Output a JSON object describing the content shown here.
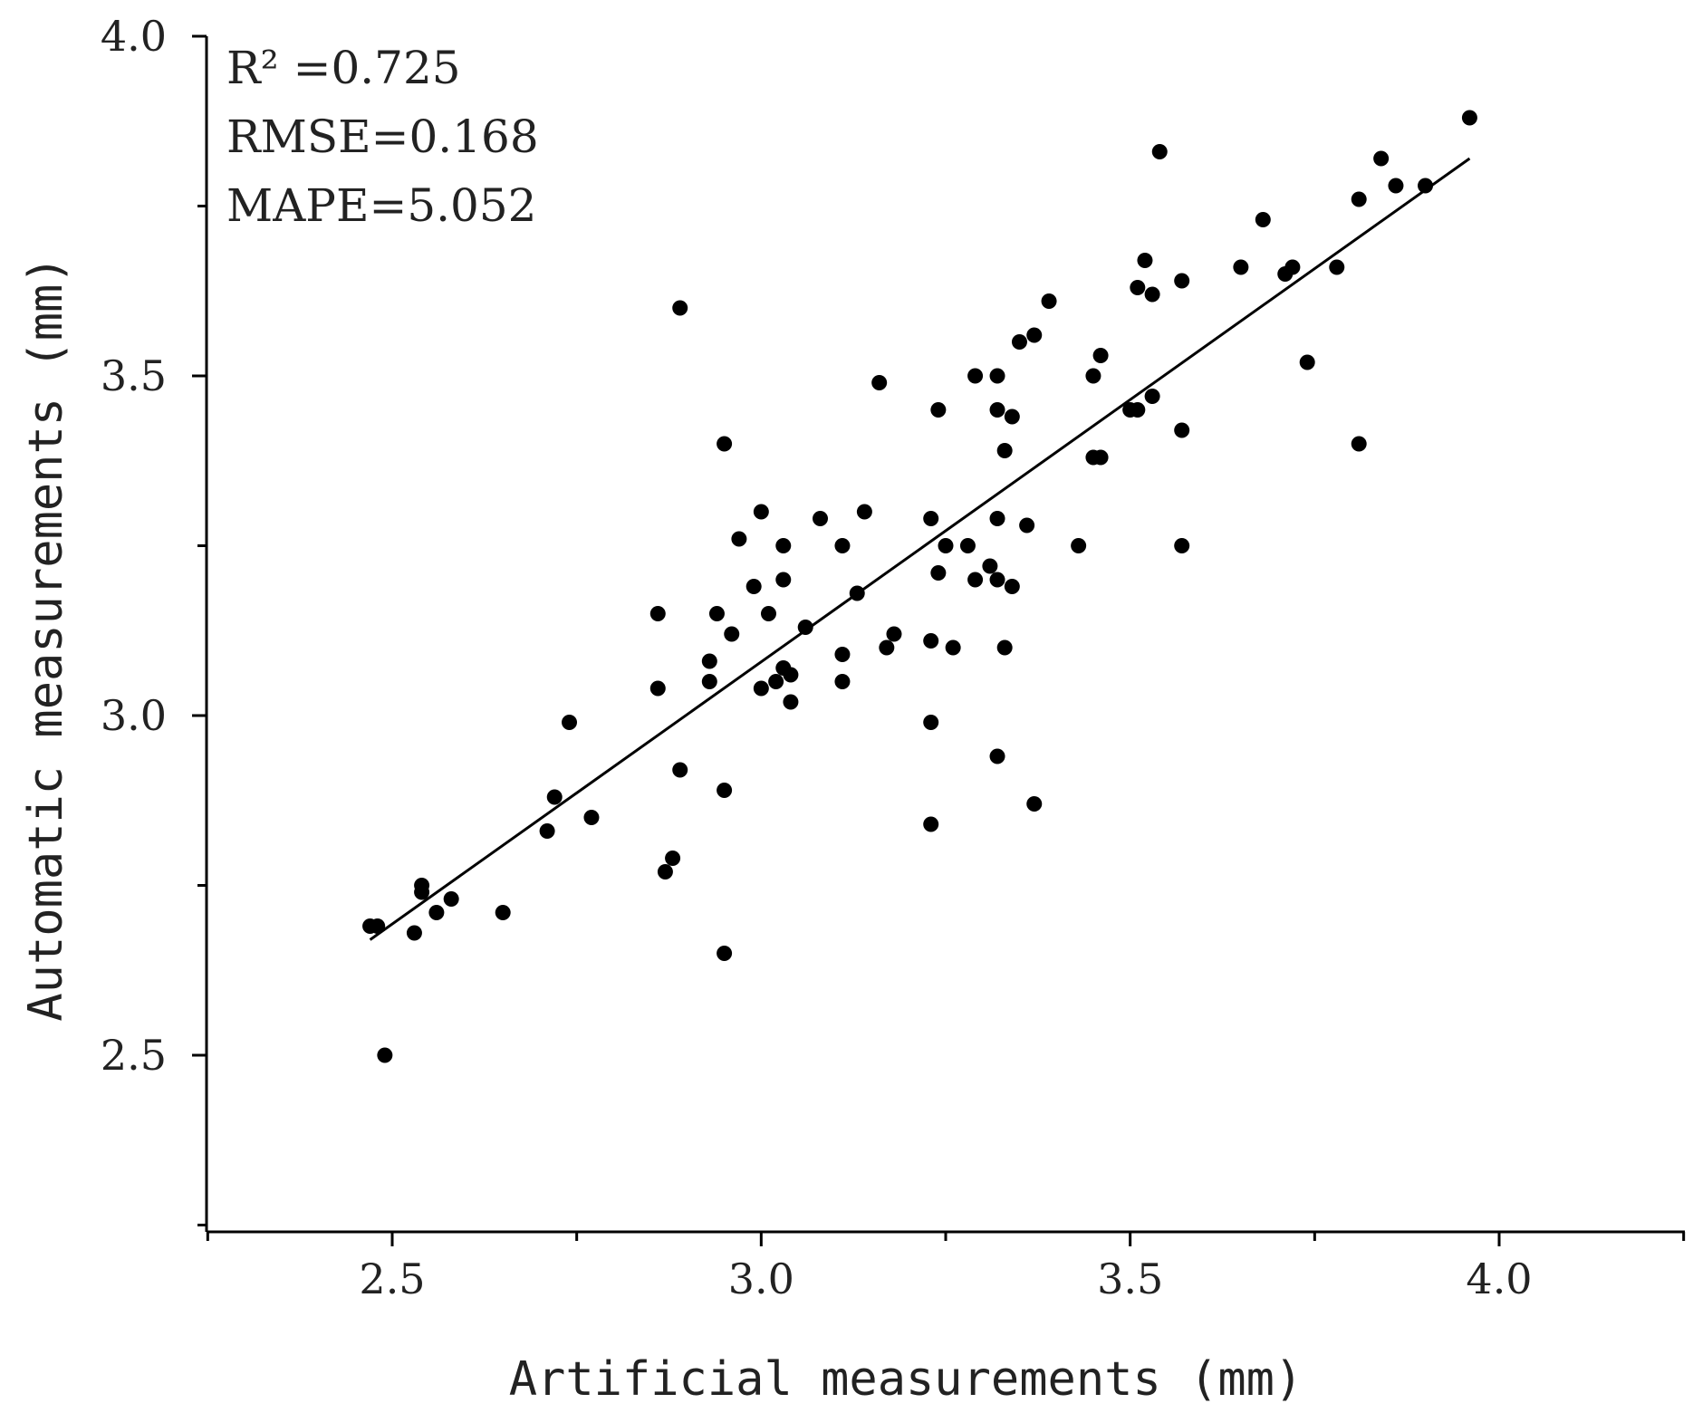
{
  "chart_data": {
    "type": "scatter",
    "xlabel": "Artificial measurements (mm)",
    "ylabel": "Automatic measurements (mm)",
    "xlim": [
      2.25,
      4.25
    ],
    "ylim": [
      2.25,
      4.0
    ],
    "x_ticks": [
      "2.5",
      "3.0",
      "3.5",
      "4.0"
    ],
    "y_ticks": [
      "2.5",
      "3.0",
      "3.5",
      "4.0"
    ],
    "annotations": [
      "R² =0.725",
      "RMSE=0.168",
      "MAPE=5.052"
    ],
    "grid": false,
    "marker_color": "#000000",
    "fit_line": {
      "x": [
        2.47,
        3.96
      ],
      "y": [
        2.67,
        3.82
      ]
    },
    "points": [
      [
        2.47,
        2.69
      ],
      [
        2.48,
        2.69
      ],
      [
        2.49,
        2.5
      ],
      [
        2.53,
        2.68
      ],
      [
        2.54,
        2.74
      ],
      [
        2.54,
        2.75
      ],
      [
        2.56,
        2.71
      ],
      [
        2.58,
        2.73
      ],
      [
        2.65,
        2.71
      ],
      [
        2.71,
        2.83
      ],
      [
        2.72,
        2.88
      ],
      [
        2.74,
        2.99
      ],
      [
        2.77,
        2.85
      ],
      [
        2.86,
        3.15
      ],
      [
        2.86,
        3.04
      ],
      [
        2.87,
        2.77
      ],
      [
        2.88,
        2.79
      ],
      [
        2.89,
        3.6
      ],
      [
        2.89,
        2.92
      ],
      [
        2.93,
        3.08
      ],
      [
        2.93,
        3.05
      ],
      [
        2.94,
        3.15
      ],
      [
        2.95,
        3.4
      ],
      [
        2.95,
        2.89
      ],
      [
        2.95,
        2.65
      ],
      [
        2.96,
        3.12
      ],
      [
        2.97,
        3.26
      ],
      [
        2.99,
        3.19
      ],
      [
        3.0,
        3.3
      ],
      [
        3.0,
        3.04
      ],
      [
        3.01,
        3.15
      ],
      [
        3.02,
        3.05
      ],
      [
        3.03,
        3.25
      ],
      [
        3.03,
        3.2
      ],
      [
        3.03,
        3.07
      ],
      [
        3.04,
        3.06
      ],
      [
        3.04,
        3.02
      ],
      [
        3.06,
        3.13
      ],
      [
        3.08,
        3.29
      ],
      [
        3.11,
        3.25
      ],
      [
        3.11,
        3.09
      ],
      [
        3.11,
        3.05
      ],
      [
        3.13,
        3.18
      ],
      [
        3.14,
        3.3
      ],
      [
        3.16,
        3.49
      ],
      [
        3.17,
        3.1
      ],
      [
        3.18,
        3.12
      ],
      [
        3.23,
        3.29
      ],
      [
        3.23,
        3.11
      ],
      [
        3.23,
        2.99
      ],
      [
        3.23,
        2.84
      ],
      [
        3.24,
        3.45
      ],
      [
        3.24,
        3.21
      ],
      [
        3.25,
        3.25
      ],
      [
        3.26,
        3.1
      ],
      [
        3.28,
        3.25
      ],
      [
        3.29,
        3.5
      ],
      [
        3.29,
        3.2
      ],
      [
        3.31,
        3.22
      ],
      [
        3.32,
        3.5
      ],
      [
        3.32,
        3.45
      ],
      [
        3.32,
        3.29
      ],
      [
        3.32,
        3.2
      ],
      [
        3.32,
        2.94
      ],
      [
        3.33,
        3.39
      ],
      [
        3.33,
        3.1
      ],
      [
        3.34,
        3.44
      ],
      [
        3.34,
        3.19
      ],
      [
        3.35,
        3.55
      ],
      [
        3.36,
        3.28
      ],
      [
        3.37,
        3.56
      ],
      [
        3.37,
        2.87
      ],
      [
        3.39,
        3.61
      ],
      [
        3.43,
        3.25
      ],
      [
        3.45,
        3.5
      ],
      [
        3.45,
        3.38
      ],
      [
        3.46,
        3.53
      ],
      [
        3.46,
        3.38
      ],
      [
        3.5,
        3.45
      ],
      [
        3.51,
        3.63
      ],
      [
        3.51,
        3.45
      ],
      [
        3.52,
        3.67
      ],
      [
        3.53,
        3.62
      ],
      [
        3.53,
        3.47
      ],
      [
        3.54,
        3.83
      ],
      [
        3.57,
        3.64
      ],
      [
        3.57,
        3.42
      ],
      [
        3.57,
        3.25
      ],
      [
        3.65,
        3.66
      ],
      [
        3.68,
        3.73
      ],
      [
        3.71,
        3.65
      ],
      [
        3.72,
        3.66
      ],
      [
        3.74,
        3.52
      ],
      [
        3.78,
        3.66
      ],
      [
        3.81,
        3.76
      ],
      [
        3.81,
        3.4
      ],
      [
        3.84,
        3.82
      ],
      [
        3.86,
        3.78
      ],
      [
        3.9,
        3.78
      ],
      [
        3.96,
        3.88
      ]
    ]
  }
}
